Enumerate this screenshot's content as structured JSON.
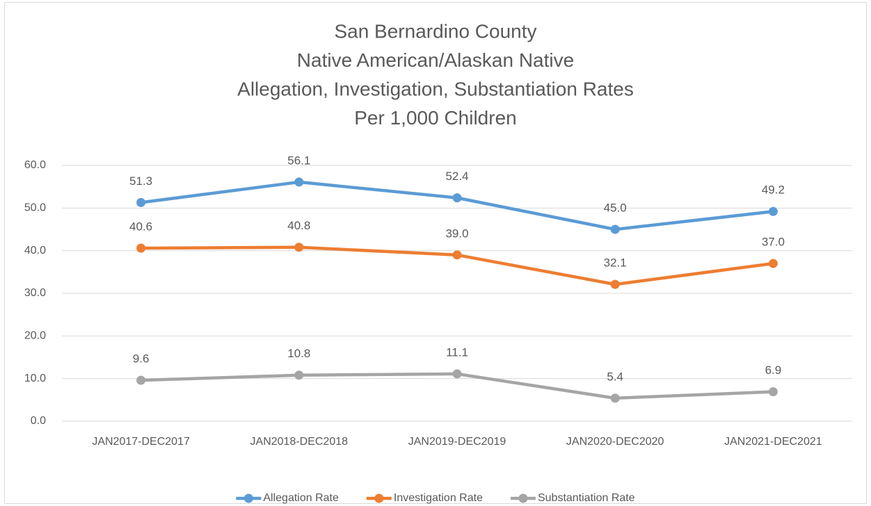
{
  "chart_data": {
    "type": "line",
    "title": [
      "San Bernardino County",
      "Native American/Alaskan Native",
      "Allegation, Investigation, Substantiation Rates",
      "Per 1,000 Children"
    ],
    "categories": [
      "JAN2017-DEC2017",
      "JAN2018-DEC2018",
      "JAN2019-DEC2019",
      "JAN2020-DEC2020",
      "JAN2021-DEC2021"
    ],
    "series": [
      {
        "name": "Allegation Rate",
        "color": "#5b9bd5",
        "values": [
          51.3,
          56.1,
          52.4,
          45.0,
          49.2
        ],
        "value_labels": [
          "51.3",
          "56.1",
          "52.4",
          "45.0",
          "49.2"
        ]
      },
      {
        "name": "Investigation Rate",
        "color": "#ed7d31",
        "values": [
          40.6,
          40.8,
          39.0,
          32.1,
          37.0
        ],
        "value_labels": [
          "40.6",
          "40.8",
          "39.0",
          "32.1",
          "37.0"
        ]
      },
      {
        "name": "Substantiation Rate",
        "color": "#a5a5a5",
        "values": [
          9.6,
          10.8,
          11.1,
          5.4,
          6.9
        ],
        "value_labels": [
          "9.6",
          "10.8",
          "11.1",
          "5.4",
          "6.9"
        ]
      }
    ],
    "ylim": [
      0,
      60
    ],
    "yticks": [
      {
        "value": 0,
        "label": "0.0"
      },
      {
        "value": 10,
        "label": "10.0"
      },
      {
        "value": 20,
        "label": "20.0"
      },
      {
        "value": 30,
        "label": "30.0"
      },
      {
        "value": 40,
        "label": "40.0"
      },
      {
        "value": 50,
        "label": "50.0"
      },
      {
        "value": 60,
        "label": "60.0"
      }
    ],
    "grid": true,
    "legend": "bottom"
  }
}
